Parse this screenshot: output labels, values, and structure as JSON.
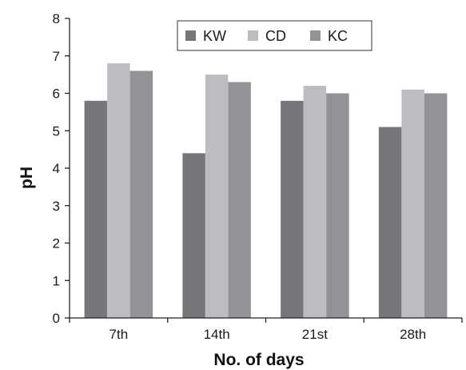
{
  "chart_data": {
    "type": "bar",
    "title": "",
    "xlabel": "No. of days",
    "ylabel": "pH",
    "categories": [
      "7th",
      "14th",
      "21st",
      "28th"
    ],
    "series": [
      {
        "name": "KW",
        "color": "#77777b",
        "values": [
          5.8,
          4.4,
          5.8,
          5.1
        ]
      },
      {
        "name": "CD",
        "color": "#bcbdc0",
        "values": [
          6.8,
          6.5,
          6.2,
          6.1
        ]
      },
      {
        "name": "KC",
        "color": "#929396",
        "values": [
          6.6,
          6.3,
          6.0,
          6.0
        ]
      }
    ],
    "ylim": [
      0,
      8
    ],
    "yticks": [
      "0",
      "1",
      "2",
      "3",
      "4",
      "5",
      "6",
      "7",
      "8"
    ],
    "grid": false,
    "legend_position": "top"
  }
}
